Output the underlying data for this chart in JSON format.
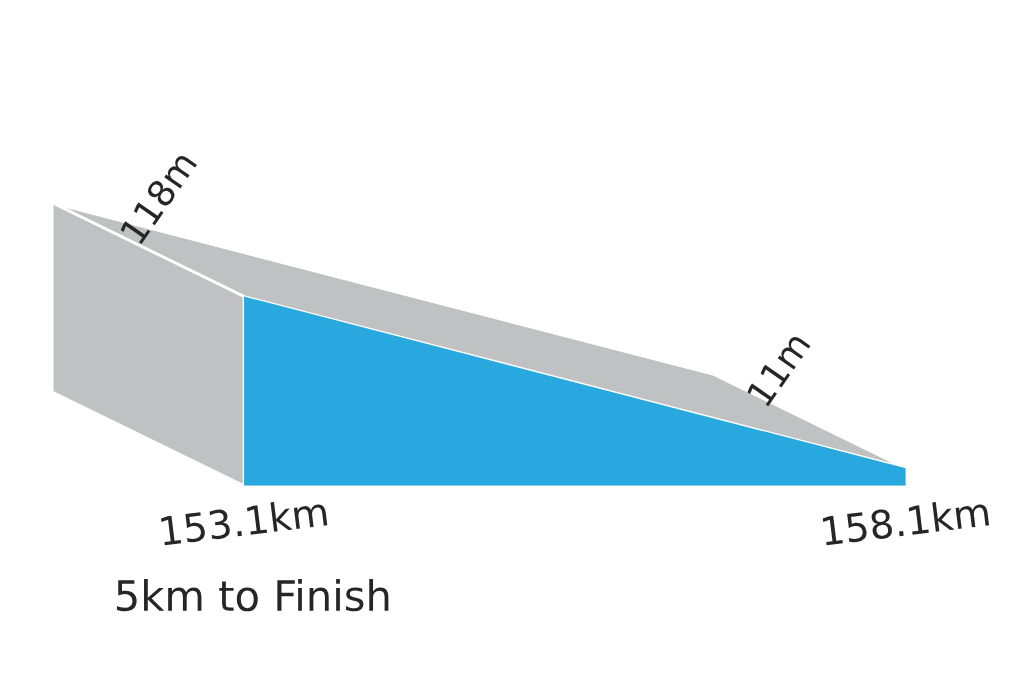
{
  "chart_data": {
    "type": "area",
    "x": [
      153.1,
      158.1
    ],
    "values": [
      118,
      11
    ],
    "value_labels": [
      "118m",
      "11m"
    ],
    "color": "#29a8df",
    "xlim": [
      153.1,
      158.1
    ],
    "xticks": [
      {
        "value": 153.1,
        "label": "153.1km"
      },
      {
        "value": 158.1,
        "label": "158.1km"
      }
    ],
    "tick_labels": "x",
    "annotations": [
      "5km to Finish"
    ]
  }
}
